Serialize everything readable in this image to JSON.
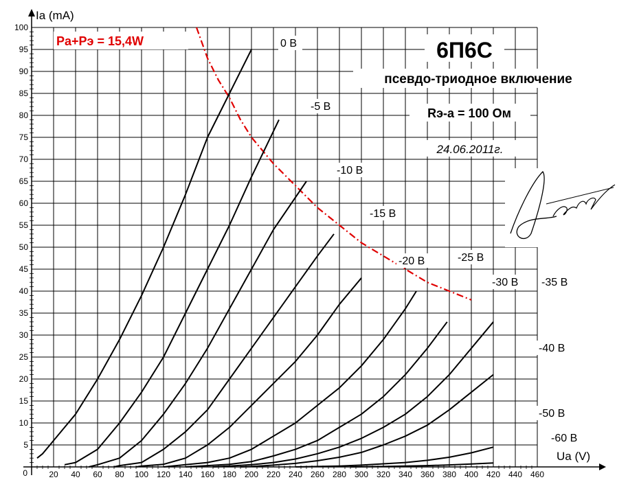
{
  "chart_data": {
    "type": "line",
    "title": "6П6С",
    "subtitle": "псевдо-триодное включение",
    "resistor_label": "Rэ-a = 100 Ом",
    "date": "24.06.2011г.",
    "xlabel": "Ua (V)",
    "ylabel": "Ia (mA)",
    "xlim": [
      0,
      460
    ],
    "ylim": [
      0,
      100
    ],
    "x_ticks": [
      20,
      40,
      60,
      80,
      100,
      120,
      140,
      160,
      180,
      200,
      220,
      240,
      260,
      280,
      300,
      320,
      340,
      360,
      380,
      400,
      420,
      440,
      460
    ],
    "y_ticks": [
      5,
      10,
      15,
      20,
      25,
      30,
      35,
      40,
      45,
      50,
      55,
      60,
      65,
      70,
      75,
      80,
      85,
      90,
      95,
      100
    ],
    "origin_label": "0",
    "grid": true,
    "power_limit": {
      "label": "Pa+Pэ = 15,4W",
      "color": "#e00000",
      "x": [
        150,
        160,
        170,
        180,
        190,
        200,
        220,
        240,
        260,
        280,
        300,
        320,
        340,
        360,
        380,
        400
      ],
      "y": [
        100,
        93,
        88,
        84,
        79,
        75,
        69,
        64,
        59,
        55,
        51,
        48,
        45,
        42,
        40,
        38
      ]
    },
    "series": [
      {
        "name": "0 В",
        "x": [
          5,
          10,
          20,
          30,
          40,
          60,
          80,
          100,
          120,
          140,
          160,
          180,
          200
        ],
        "y": [
          2,
          3,
          6,
          9,
          12,
          20,
          29,
          39,
          50,
          62,
          75,
          85,
          95
        ]
      },
      {
        "name": "-5 В",
        "x": [
          30,
          40,
          60,
          80,
          100,
          120,
          140,
          160,
          180,
          200,
          225
        ],
        "y": [
          0.5,
          1,
          4,
          10,
          17,
          25,
          35,
          45,
          55,
          66,
          79
        ]
      },
      {
        "name": "-10 В",
        "x": [
          52,
          60,
          80,
          100,
          120,
          140,
          160,
          180,
          200,
          220,
          250
        ],
        "y": [
          0,
          0.5,
          2,
          6,
          12,
          19,
          27,
          36,
          45,
          54,
          65
        ]
      },
      {
        "name": "-15 В",
        "x": [
          75,
          80,
          100,
          120,
          140,
          160,
          180,
          200,
          220,
          240,
          260,
          275
        ],
        "y": [
          0,
          0.3,
          1,
          4,
          8,
          13,
          20,
          27,
          34,
          41,
          48,
          53
        ]
      },
      {
        "name": "-20 В",
        "x": [
          95,
          100,
          120,
          140,
          160,
          180,
          200,
          220,
          240,
          260,
          280,
          300
        ],
        "y": [
          0,
          0.2,
          0.6,
          2,
          5,
          9,
          14,
          19,
          24,
          30,
          37,
          43
        ]
      },
      {
        "name": "-25 В",
        "x": [
          120,
          140,
          160,
          180,
          200,
          220,
          240,
          260,
          280,
          300,
          320,
          340,
          350
        ],
        "y": [
          0,
          0.5,
          1,
          2,
          4,
          7,
          10,
          14,
          18,
          23,
          29,
          36,
          40
        ]
      },
      {
        "name": "-30 В",
        "x": [
          140,
          160,
          180,
          200,
          220,
          240,
          260,
          280,
          300,
          320,
          340,
          360,
          378
        ],
        "y": [
          0,
          0.3,
          0.6,
          1.2,
          2.5,
          4,
          6,
          9,
          12,
          16,
          21,
          27,
          33
        ]
      },
      {
        "name": "-35 В",
        "x": [
          165,
          180,
          200,
          220,
          240,
          260,
          280,
          300,
          320,
          340,
          360,
          380,
          400,
          420
        ],
        "y": [
          0,
          0.2,
          0.5,
          1,
          1.8,
          3,
          4.5,
          6.5,
          9,
          12,
          16,
          21,
          27,
          33
        ]
      },
      {
        "name": "-40 В",
        "x": [
          190,
          200,
          220,
          240,
          260,
          280,
          300,
          320,
          340,
          360,
          380,
          400,
          420
        ],
        "y": [
          0,
          0.1,
          0.4,
          0.8,
          1.4,
          2.2,
          3.3,
          5,
          7,
          9.5,
          13,
          17,
          21
        ]
      },
      {
        "name": "-50 В",
        "x": [
          240,
          260,
          280,
          300,
          320,
          340,
          360,
          380,
          400,
          420
        ],
        "y": [
          0,
          0.1,
          0.2,
          0.4,
          0.7,
          1,
          1.5,
          2.2,
          3.2,
          4.5
        ]
      },
      {
        "name": "-60 В",
        "x": [
          290,
          300,
          320,
          340,
          360,
          380,
          400,
          420
        ],
        "y": [
          0,
          0.05,
          0.1,
          0.2,
          0.3,
          0.45,
          0.65,
          0.9
        ]
      }
    ]
  },
  "signature_text": "Ivanov"
}
